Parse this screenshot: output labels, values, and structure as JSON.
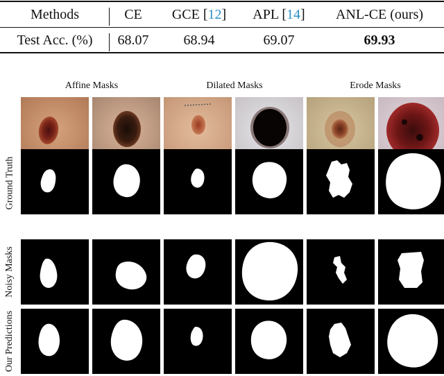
{
  "table": {
    "header": {
      "methods": "Methods",
      "ce": "CE",
      "gce": "GCE",
      "gce_ref": "12",
      "apl": "APL",
      "apl_ref": "14",
      "ours": "ANL-CE (ours)"
    },
    "row": {
      "label": "Test Acc. (%)",
      "ce": "68.07",
      "gce": "68.94",
      "apl": "69.07",
      "ours": "69.93"
    }
  },
  "figure": {
    "groups": [
      "Affine Masks",
      "Dilated Masks",
      "Erode Masks"
    ],
    "rows": [
      "Ground Truth",
      "Noisy Masks",
      "Our Predictions"
    ]
  },
  "colors": {
    "citation": "#2a8fc4",
    "mask_background": "#000000",
    "mask_foreground": "#ffffff"
  }
}
